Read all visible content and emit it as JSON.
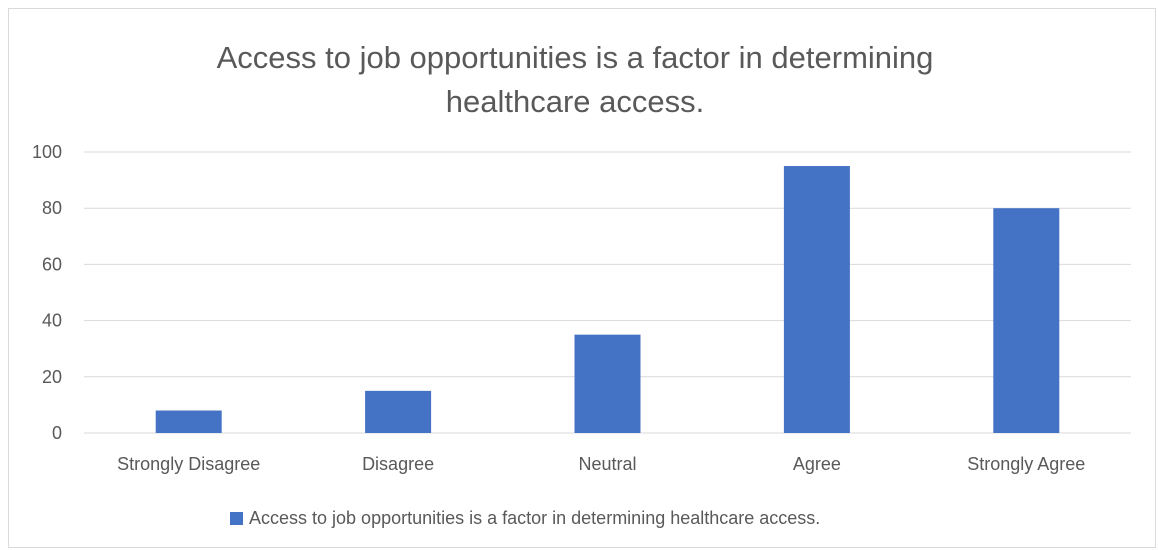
{
  "chart_data": {
    "type": "bar",
    "title": "Access to job opportunities is a factor in determining healthcare access.",
    "categories": [
      "Strongly Disagree",
      "Disagree",
      "Neutral",
      "Agree",
      "Strongly Agree"
    ],
    "series": [
      {
        "name": "Access to job opportunities is a factor in determining healthcare access.",
        "values": [
          8,
          15,
          35,
          95,
          80
        ],
        "color": "#4472c4"
      }
    ],
    "ylim": [
      0,
      100
    ],
    "yticks": [
      "0",
      "20",
      "40",
      "60",
      "80",
      "100"
    ],
    "xlabel": "",
    "ylabel": "",
    "grid": true,
    "legend_position": "bottom"
  }
}
